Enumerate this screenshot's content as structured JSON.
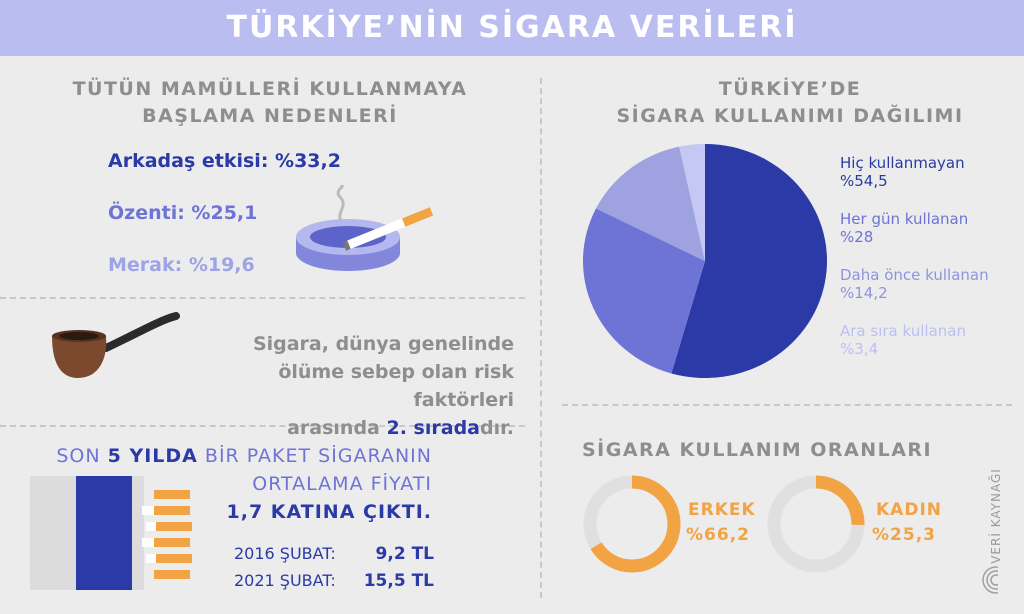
{
  "title": "TÜRKİYE’NİN SİGARA VERİLERİ",
  "reasons": {
    "title_line1": "TÜTÜN MAMÜLLERİ KULLANMAYA",
    "title_line2": "BAŞLAMA NEDENLERİ",
    "items": [
      {
        "label": "Arkadaş etkisi: %33,2",
        "color": "#2b3aa6"
      },
      {
        "label": "Özenti: %25,1",
        "color": "#6e74d6"
      },
      {
        "label": "Merak: %19,6",
        "color": "#9ea2e6"
      }
    ]
  },
  "fact": {
    "line1": "Sigara, dünya genelinde",
    "line2": "ölüme sebep olan risk faktörleri",
    "line3_pre": "arasında ",
    "line3_hl": "2. sırada",
    "line3_post": "dır."
  },
  "price": {
    "l1_a": "SON ",
    "l1_b": "5 YILDA",
    "l1_c": " BİR PAKET SİGARANIN",
    "l2": "ORTALAMA FİYATI",
    "l3": "1,7 KATINA ÇIKTI.",
    "rows": [
      {
        "year": "2016 ŞUBAT:",
        "value": "9,2 TL"
      },
      {
        "year": "2021 ŞUBAT:",
        "value": "15,5 TL"
      }
    ]
  },
  "distribution": {
    "title_line1": "TÜRKİYE’DE",
    "title_line2": "SİGARA KULLANIMI DAĞILIMI",
    "legend": [
      {
        "label": "Hiç kullanmayan",
        "pct": "%54,5",
        "color": "#2b3aa6"
      },
      {
        "label": "Her gün kullanan",
        "pct": "%28",
        "color": "#6e74d6"
      },
      {
        "label": "Daha önce kullanan",
        "pct": "%14,2",
        "color": "#8f94df"
      },
      {
        "label": "Ara sıra kullanan",
        "pct": "%3,4",
        "color": "#bcc0f0"
      }
    ]
  },
  "chart_data": {
    "type": "pie",
    "categories": [
      "Hiç kullanmayan",
      "Her gün kullanan",
      "Daha önce kullanan",
      "Ara sıra kullanan"
    ],
    "values": [
      54.5,
      28,
      14.2,
      3.4
    ],
    "colors": [
      "#2b3aa6",
      "#6e74d6",
      "#9ea2e0",
      "#c5c8f2"
    ]
  },
  "rates": {
    "title": "SİGARA KULLANIM ORANLARI",
    "items": [
      {
        "label": "ERKEK",
        "pct": "%66,2",
        "value": 66.2
      },
      {
        "label": "KADIN",
        "pct": "%25,3",
        "value": 25.3
      }
    ],
    "colors": {
      "fill": "#f2a344",
      "track": "#e0e0e0"
    }
  },
  "source": "VERİ KAYNAĞI"
}
